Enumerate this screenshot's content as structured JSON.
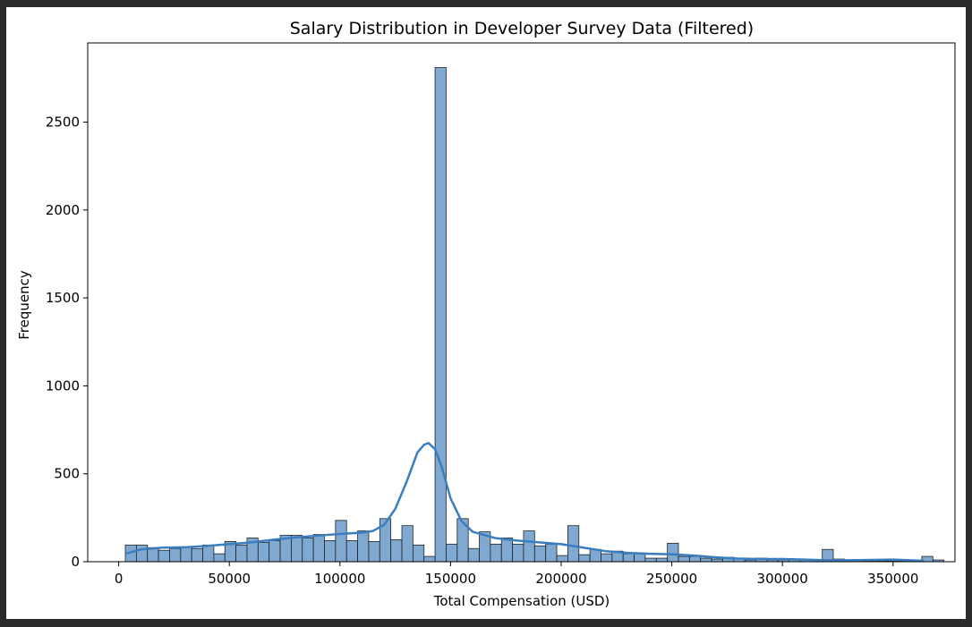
{
  "chart_data": {
    "type": "bar",
    "title": "Salary Distribution in Developer Survey Data (Filtered)",
    "xlabel": "Total Compensation (USD)",
    "ylabel": "Frequency",
    "xlim": [
      -14000,
      378000
    ],
    "ylim": [
      0,
      2950
    ],
    "xticks": [
      0,
      50000,
      100000,
      150000,
      200000,
      250000,
      300000,
      350000
    ],
    "yticks": [
      0,
      500,
      1000,
      1500,
      2000,
      2500
    ],
    "grid": false,
    "bar_color": "#7fa9d1",
    "bar_edge": "#222222",
    "kde_color": "#3a7ebf",
    "bins_start": 3000,
    "bin_width": 5000,
    "values": [
      95,
      95,
      80,
      65,
      75,
      85,
      75,
      95,
      45,
      115,
      95,
      135,
      110,
      120,
      150,
      150,
      135,
      155,
      120,
      235,
      120,
      175,
      115,
      245,
      125,
      205,
      95,
      30,
      2810,
      100,
      245,
      75,
      170,
      100,
      135,
      100,
      175,
      90,
      100,
      35,
      205,
      40,
      70,
      45,
      60,
      45,
      50,
      20,
      20,
      105,
      30,
      30,
      20,
      15,
      25,
      15,
      10,
      20,
      10,
      10,
      15,
      10,
      10,
      70,
      15,
      10,
      5,
      5,
      5,
      5,
      5,
      5,
      30,
      10
    ],
    "kde": {
      "x": [
        3000,
        10000,
        20000,
        30000,
        40000,
        50000,
        60000,
        70000,
        80000,
        90000,
        100000,
        110000,
        115000,
        120000,
        125000,
        130000,
        135000,
        138000,
        140000,
        143000,
        146000,
        150000,
        155000,
        160000,
        170000,
        180000,
        190000,
        200000,
        210000,
        220000,
        230000,
        240000,
        250000,
        260000,
        270000,
        280000,
        290000,
        300000,
        310000,
        320000,
        330000,
        340000,
        350000,
        364000
      ],
      "y": [
        45,
        70,
        80,
        82,
        90,
        100,
        110,
        125,
        138,
        148,
        158,
        165,
        175,
        210,
        300,
        450,
        620,
        665,
        675,
        640,
        540,
        360,
        230,
        170,
        135,
        120,
        110,
        100,
        80,
        60,
        50,
        45,
        42,
        35,
        25,
        18,
        15,
        15,
        12,
        8,
        8,
        10,
        12,
        5
      ]
    }
  }
}
